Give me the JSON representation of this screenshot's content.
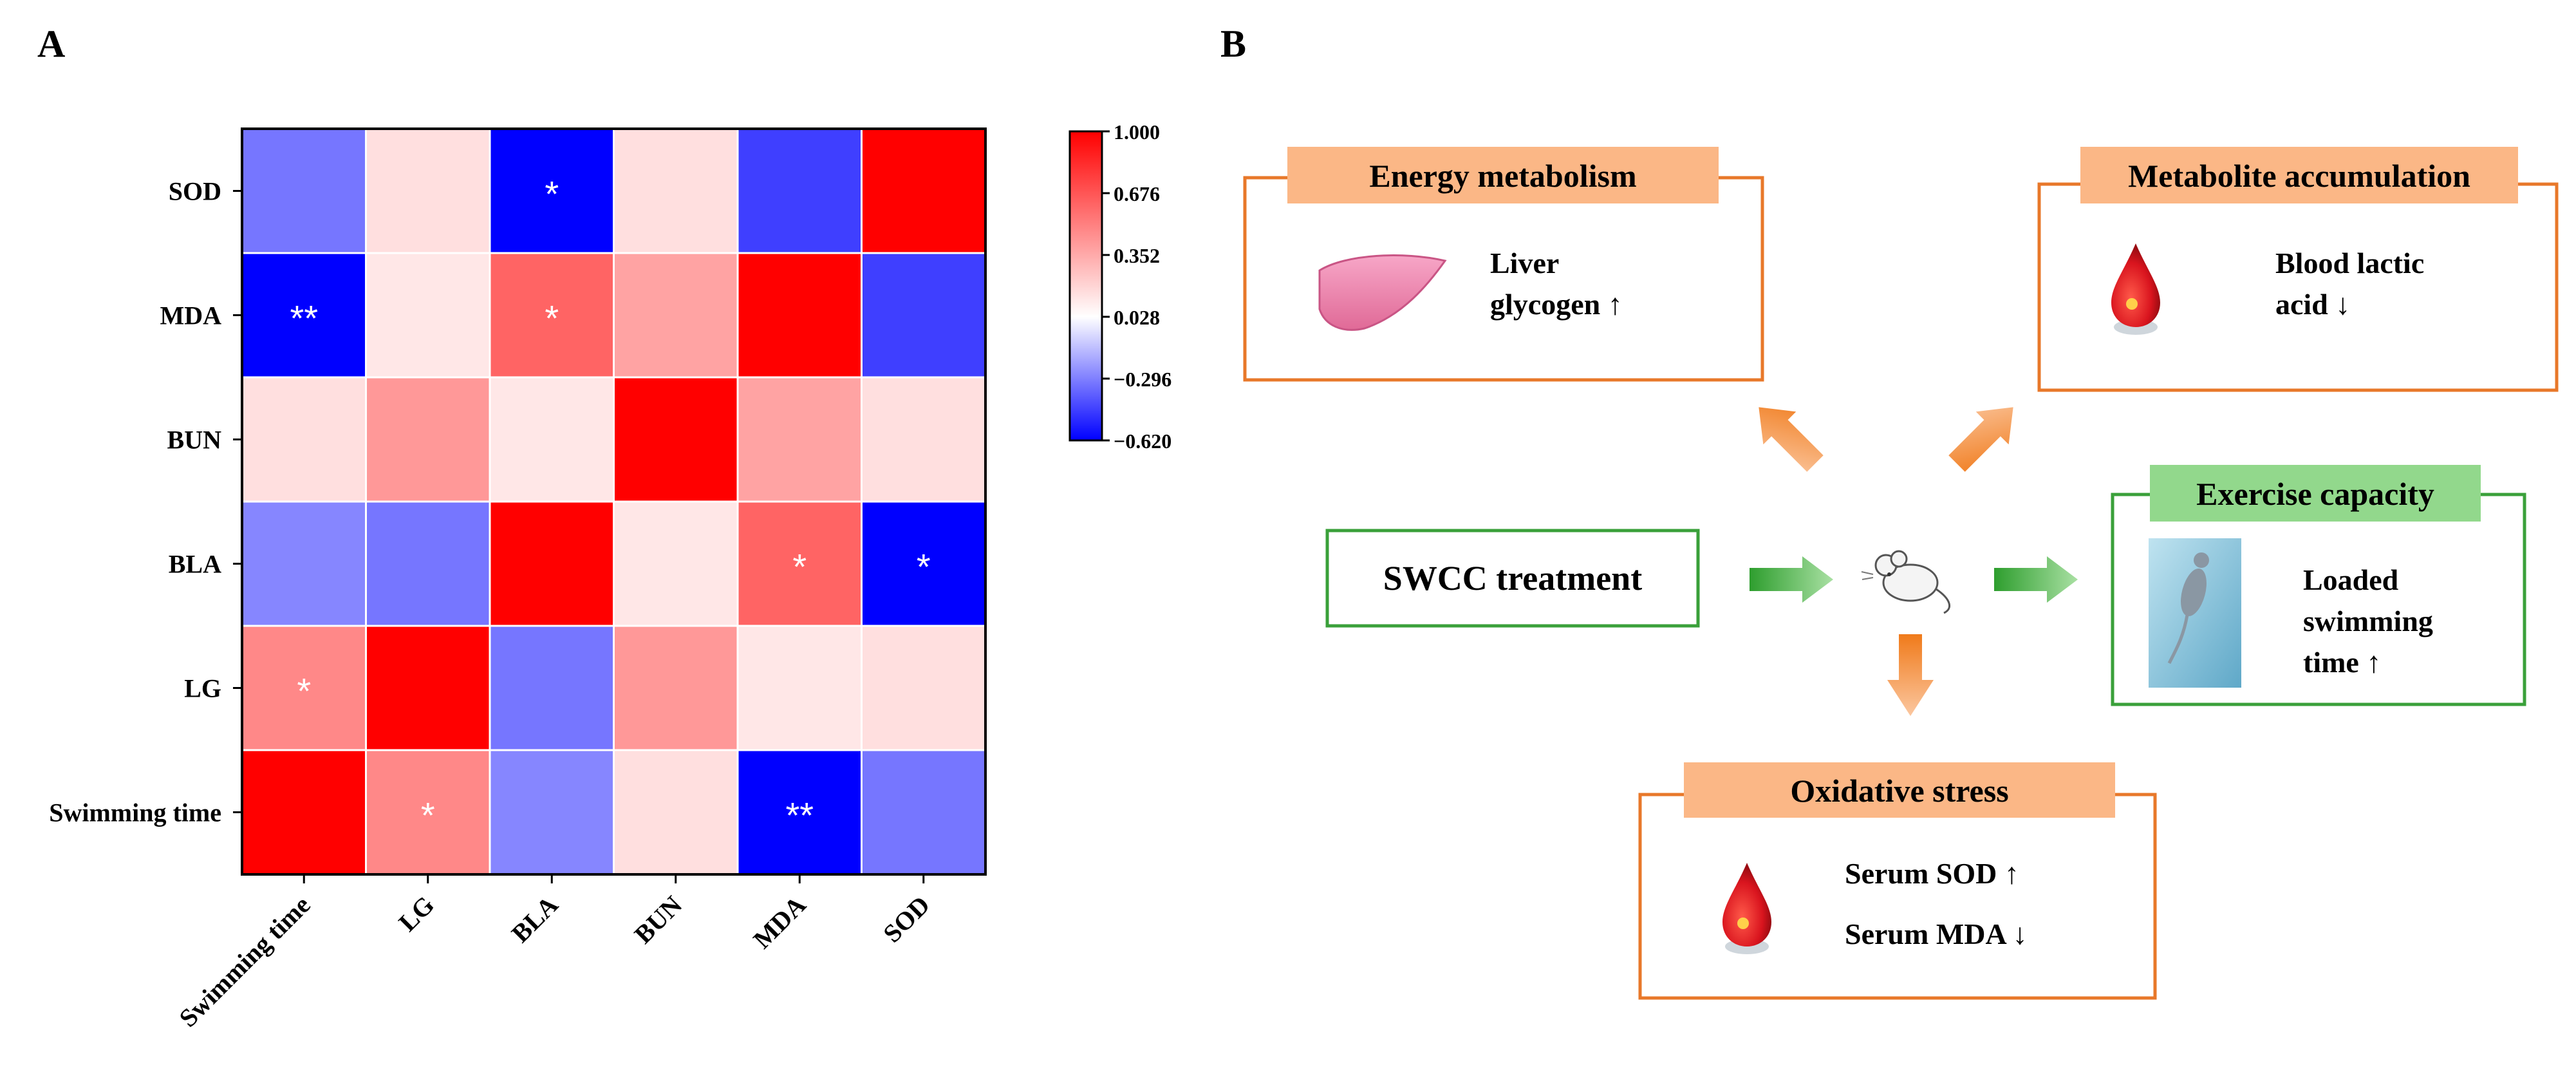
{
  "panels": {
    "a_label": "A",
    "b_label": "B"
  },
  "chart_data": {
    "type": "heatmap",
    "title": "",
    "variables": [
      "Swimming time",
      "LG",
      "BLA",
      "BUN",
      "MDA",
      "SOD"
    ],
    "x_tick_labels": [
      "Swimming time",
      "LG",
      "BLA",
      "BUN",
      "MDA",
      "SOD"
    ],
    "y_tick_labels_top_to_bottom": [
      "SOD",
      "MDA",
      "BUN",
      "BLA",
      "LG",
      "Swimming time"
    ],
    "matrix": [
      [
        1.0,
        0.48,
        -0.28,
        0.15,
        -0.62,
        -0.32
      ],
      [
        0.48,
        1.0,
        -0.32,
        0.42,
        0.12,
        0.15
      ],
      [
        -0.28,
        -0.32,
        1.0,
        0.12,
        0.62,
        -0.62
      ],
      [
        0.15,
        0.42,
        0.12,
        1.0,
        0.38,
        0.15
      ],
      [
        -0.62,
        0.12,
        0.62,
        0.38,
        1.0,
        -0.46
      ],
      [
        -0.32,
        0.15,
        -0.62,
        0.15,
        -0.46,
        1.0
      ]
    ],
    "significance": [
      [
        "",
        "*",
        "",
        "",
        "**",
        ""
      ],
      [
        "*",
        "",
        "",
        "",
        "",
        ""
      ],
      [
        "",
        "",
        "",
        "",
        "*",
        "*"
      ],
      [
        "",
        "",
        "",
        "",
        "",
        ""
      ],
      [
        "**",
        "",
        "*",
        "",
        "",
        ""
      ],
      [
        "",
        "",
        "*",
        "",
        "",
        ""
      ]
    ],
    "colorbar": {
      "min": -0.62,
      "max": 1.0,
      "tick_labels": [
        "1.000",
        "0.676",
        "0.352",
        "0.028",
        "−0.296",
        "−0.620"
      ],
      "colors": {
        "low": "#0000ff",
        "mid": "#ffffff",
        "high": "#ff0000"
      }
    }
  },
  "diagram": {
    "center_treatment": "SWCC treatment",
    "boxes": {
      "energy": {
        "title": "Energy metabolism",
        "lines": [
          "Liver",
          "glycogen ↑"
        ],
        "icon": "liver-icon"
      },
      "metabolite": {
        "title": "Metabolite accumulation",
        "lines": [
          "Blood lactic",
          "acid ↓"
        ],
        "icon": "blood-drop-icon"
      },
      "exercise": {
        "title": "Exercise capacity",
        "lines": [
          "Loaded",
          "swimming",
          "time ↑"
        ],
        "icon": "swimming-mouse-icon"
      },
      "oxidative": {
        "title": "Oxidative stress",
        "lines": [
          "Serum SOD ↑",
          "Serum MDA ↓"
        ],
        "icon": "blood-drop-icon"
      }
    },
    "colors": {
      "orange_border": "#e8782a",
      "orange_fill": "#fbb786",
      "green_border": "#3aa03a",
      "green_fill": "#92d88c",
      "arrow_orange": "#f79646",
      "arrow_green": "#4cb848"
    }
  }
}
